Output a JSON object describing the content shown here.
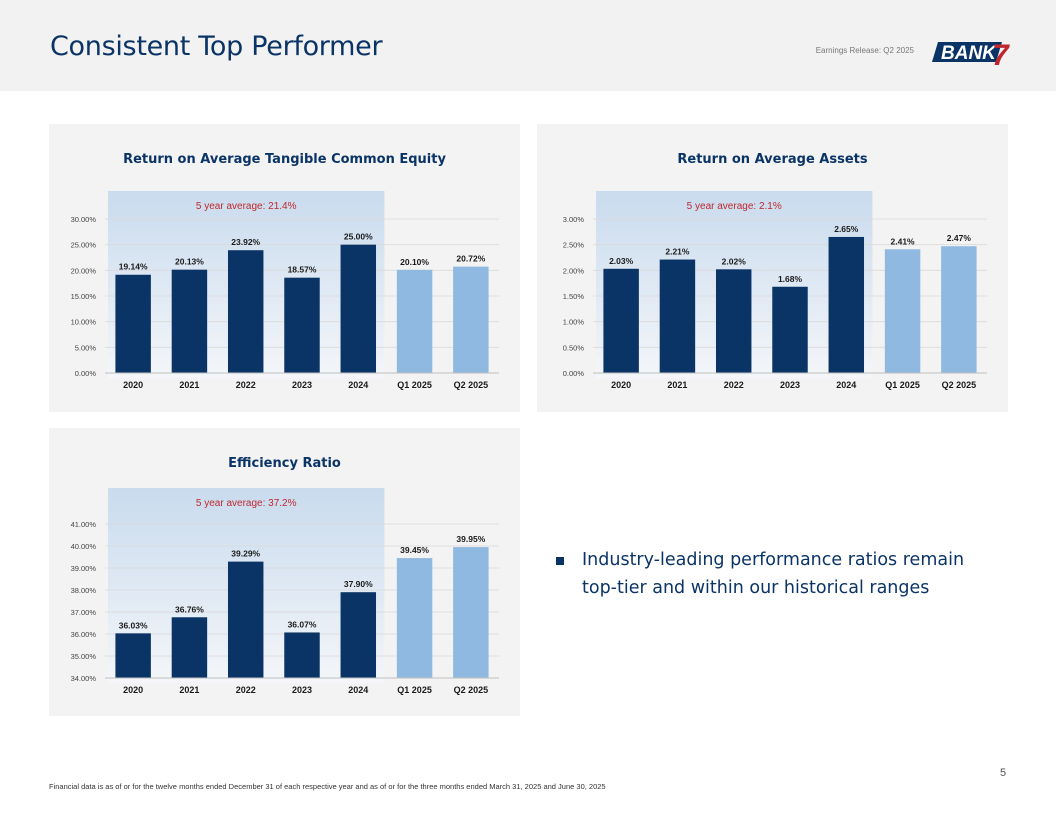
{
  "header": {
    "title": "Consistent Top Performer",
    "release": "Earnings Release: Q2 2025",
    "logo_text": "BANK",
    "logo_mark": "7"
  },
  "colors": {
    "dark_bar": "#0b3466",
    "light_bar": "#8fb9e0",
    "accent_red": "#c0282e",
    "title_navy": "#0b3466"
  },
  "chart_data": [
    {
      "type": "bar",
      "title": "Return on Average Tangible Common Equity",
      "categories": [
        "2020",
        "2021",
        "2022",
        "2023",
        "2024",
        "Q1 2025",
        "Q2 2025"
      ],
      "values": [
        19.14,
        20.13,
        23.92,
        18.57,
        25.0,
        20.1,
        20.72
      ],
      "labels": [
        "19.14%",
        "20.13%",
        "23.92%",
        "18.57%",
        "25.00%",
        "20.10%",
        "20.72%"
      ],
      "ylim": [
        0,
        30
      ],
      "yticks": [
        "0.00%",
        "5.00%",
        "10.00%",
        "15.00%",
        "20.00%",
        "25.00%",
        "30.00%"
      ],
      "average_label": "5 year average: 21.4%",
      "highlight_count": 5
    },
    {
      "type": "bar",
      "title": "Return on Average Assets",
      "categories": [
        "2020",
        "2021",
        "2022",
        "2023",
        "2024",
        "Q1 2025",
        "Q2 2025"
      ],
      "values": [
        2.03,
        2.21,
        2.02,
        1.68,
        2.65,
        2.41,
        2.47
      ],
      "labels": [
        "2.03%",
        "2.21%",
        "2.02%",
        "1.68%",
        "2.65%",
        "2.41%",
        "2.47%"
      ],
      "ylim": [
        0,
        3
      ],
      "yticks": [
        "0.00%",
        "0.50%",
        "1.00%",
        "1.50%",
        "2.00%",
        "2.50%",
        "3.00%"
      ],
      "average_label": "5 year average: 2.1%",
      "highlight_count": 5
    },
    {
      "type": "bar",
      "title": "Efficiency Ratio",
      "categories": [
        "2020",
        "2021",
        "2022",
        "2023",
        "2024",
        "Q1 2025",
        "Q2 2025"
      ],
      "values": [
        36.03,
        36.76,
        39.29,
        36.07,
        37.9,
        39.45,
        39.95
      ],
      "labels": [
        "36.03%",
        "36.76%",
        "39.29%",
        "36.07%",
        "37.90%",
        "39.45%",
        "39.95%"
      ],
      "ylim": [
        34,
        41
      ],
      "yticks": [
        "34.00%",
        "35.00%",
        "36.00%",
        "37.00%",
        "38.00%",
        "39.00%",
        "40.00%",
        "41.00%"
      ],
      "average_label": "5 year average: 37.2%",
      "highlight_count": 5
    }
  ],
  "bullet": {
    "text": "Industry-leading performance ratios remain top-tier and within our historical ranges"
  },
  "footnote": "Financial data is as of or for the twelve months ended December 31 of each respective year and as of or for the three months ended March 31, 2025 and June 30, 2025",
  "page_number": "5"
}
